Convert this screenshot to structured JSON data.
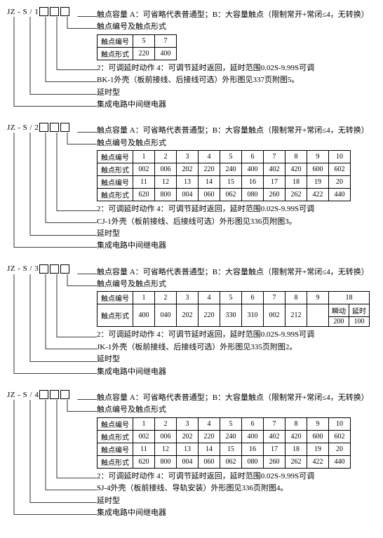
{
  "codes": [
    "JZ - S / 1",
    "JZ - S / 2",
    "JZ - S / 3",
    "JZ - S / 4"
  ],
  "common": {
    "capacity": "触点容量   A：可省略代表普通型；B：大容量触点（限制常开+常闭≤4，无转换）",
    "header2": "触点编号及触点形式",
    "delayType": "延时型",
    "relayType": "集成电路中间继电器",
    "adjust": "2：可调延时动作    4：可调节延时返回，延时范围0.02S-9.99S可调"
  },
  "blocks": [
    {
      "table1": {
        "h1": "触点编号",
        "h2": "触点形式",
        "cols": [
          "5",
          "7"
        ],
        "vals": [
          "220",
          "400"
        ]
      },
      "shell": "BK-1外壳（板前接线、后接线可选）外形图见337页附图5。"
    },
    {
      "table2": {
        "h1": "触点编号",
        "h2": "触点形式",
        "h3": "触点编号",
        "h4": "触点形式",
        "r1": [
          "1",
          "2",
          "3",
          "4",
          "5",
          "6",
          "7",
          "8",
          "9",
          "10"
        ],
        "r2": [
          "002",
          "006",
          "202",
          "220",
          "240",
          "400",
          "402",
          "420",
          "600",
          "602"
        ],
        "r3": [
          "11",
          "12",
          "13",
          "14",
          "15",
          "16",
          "17",
          "18",
          "19",
          "20"
        ],
        "r4": [
          "620",
          "800",
          "004",
          "060",
          "062",
          "080",
          "260",
          "262",
          "422",
          "440"
        ]
      },
      "shell": "CJ-1外壳（板前接线、后接线可选）外形图见336页附图3。"
    },
    {
      "table3": {
        "h1": "触点编号",
        "h2": "触点形式",
        "r1": [
          "1",
          "2",
          "3",
          "4",
          "5",
          "6",
          "7",
          "8",
          "9"
        ],
        "r2": [
          "400",
          "040",
          "202",
          "220",
          "330",
          "310",
          "002",
          "212"
        ],
        "r1b": "18",
        "r1b1": "瞬动",
        "r1b2": "延时",
        "r2b1": "200",
        "r2b2": "100"
      },
      "shell": "JK-1外壳（板前接线、后接线可选）外形图见335页附图2。"
    },
    {
      "table4": {
        "h1": "触点编号",
        "h2": "触点形式",
        "h3": "触点编号",
        "h4": "触点形式",
        "r1": [
          "1",
          "2",
          "3",
          "4",
          "5",
          "6",
          "7",
          "8",
          "9",
          "10"
        ],
        "r2": [
          "002",
          "006",
          "202",
          "220",
          "240",
          "400",
          "402",
          "420",
          "600",
          "602"
        ],
        "r3": [
          "11",
          "12",
          "13",
          "14",
          "15",
          "16",
          "17",
          "18",
          "19",
          "20"
        ],
        "r4": [
          "620",
          "800",
          "004",
          "060",
          "062",
          "080",
          "260",
          "262",
          "422",
          "440"
        ]
      },
      "shell": "SJ-4外壳（板前接线、导轨安装）外形图见336页附图4。"
    }
  ]
}
